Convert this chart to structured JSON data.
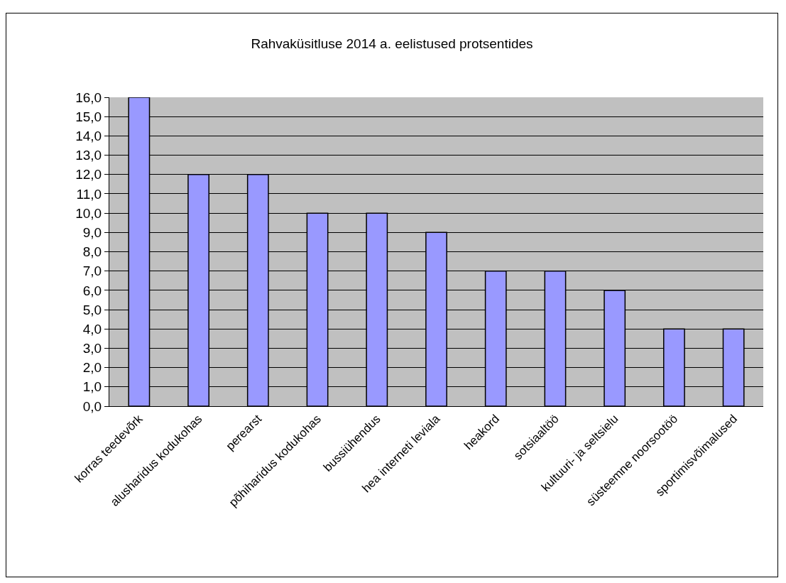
{
  "chart_data": {
    "type": "bar",
    "title": "Rahvaküsitluse 2014 a. eelistused protsentides",
    "categories": [
      "korras teedevõrk",
      "alusharidus kodukohas",
      "perearst",
      "põhiharidus kodukohas",
      "bussiühendus",
      "hea interneti leviala",
      "heakord",
      "sotsiaaltöö",
      "kultuuri- ja seltsielu",
      "süsteemne noorsootöö",
      "sportimisvõimalused"
    ],
    "values": [
      16,
      12,
      12,
      10,
      10,
      9,
      7,
      7,
      6,
      4,
      4
    ],
    "color": "#9999ff",
    "ylim": [
      0,
      16
    ],
    "yticks": [
      {
        "value": 0,
        "label": "0,0"
      },
      {
        "value": 1,
        "label": "1,0"
      },
      {
        "value": 2,
        "label": "2,0"
      },
      {
        "value": 3,
        "label": "3,0"
      },
      {
        "value": 4,
        "label": "4,0"
      },
      {
        "value": 5,
        "label": "5,0"
      },
      {
        "value": 6,
        "label": "6,0"
      },
      {
        "value": 7,
        "label": "7,0"
      },
      {
        "value": 8,
        "label": "8,0"
      },
      {
        "value": 9,
        "label": "9,0"
      },
      {
        "value": 10,
        "label": "10,0"
      },
      {
        "value": 11,
        "label": "11,0"
      },
      {
        "value": 12,
        "label": "12,0"
      },
      {
        "value": 13,
        "label": "13,0"
      },
      {
        "value": 14,
        "label": "14,0"
      },
      {
        "value": 15,
        "label": "15,0"
      },
      {
        "value": 16,
        "label": "16,0"
      }
    ],
    "grid": "y",
    "legend": false
  }
}
